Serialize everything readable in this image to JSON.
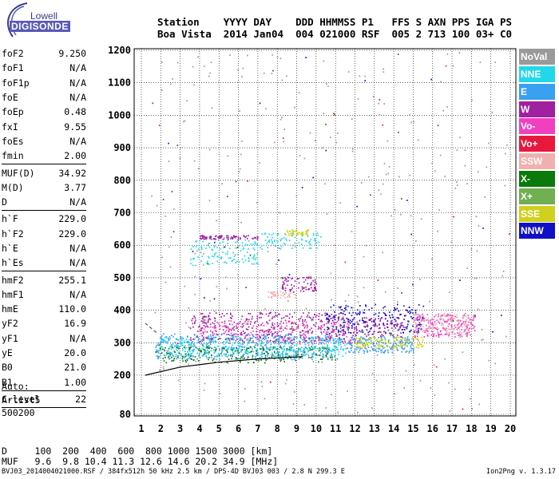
{
  "logo": {
    "brand": "Lowell",
    "product": "DIGISONDE"
  },
  "header": {
    "line1": "Station    YYYY DAY    DDD HHMMSS P1   FFS S AXN PPS IGA PS",
    "line2": "Boa Vista  2014 Jan04  004 021000 RSF  005 2 713 100 03+ C0"
  },
  "params": {
    "group1": [
      {
        "name": "foF2",
        "value": "9.250"
      },
      {
        "name": "foF1",
        "value": "N/A"
      },
      {
        "name": "foF1p",
        "value": "N/A"
      },
      {
        "name": "foE",
        "value": "N/A"
      },
      {
        "name": "foEp",
        "value": "0.48"
      },
      {
        "name": "fxI",
        "value": "9.55"
      },
      {
        "name": "foEs",
        "value": "N/A"
      },
      {
        "name": "fmin",
        "value": "2.00"
      }
    ],
    "group2": [
      {
        "name": "MUF(D)",
        "value": "34.92"
      },
      {
        "name": "M(D)",
        "value": "3.77"
      },
      {
        "name": "D",
        "value": "N/A"
      }
    ],
    "group3": [
      {
        "name": "h`F",
        "value": "229.0"
      },
      {
        "name": "h`F2",
        "value": "229.0"
      },
      {
        "name": "h`E",
        "value": "N/A"
      },
      {
        "name": "h`Es",
        "value": "N/A"
      }
    ],
    "group4": [
      {
        "name": "hmF2",
        "value": "255.1"
      },
      {
        "name": "hmF1",
        "value": "N/A"
      },
      {
        "name": "hmE",
        "value": "110.0"
      },
      {
        "name": "yF2",
        "value": "16.9"
      },
      {
        "name": "yF1",
        "value": "N/A"
      },
      {
        "name": "yE",
        "value": "20.0"
      },
      {
        "name": "B0",
        "value": "21.0"
      },
      {
        "name": "B1",
        "value": "1.00"
      }
    ],
    "group5": [
      {
        "name": "C-level",
        "value": "22"
      }
    ]
  },
  "auto": {
    "line1": "Auto:",
    "line2": "Artist5",
    "line3": "500200"
  },
  "legend": [
    {
      "label": "NoVal",
      "color": "#9a9a9a"
    },
    {
      "label": "NNE",
      "color": "#22d8e8"
    },
    {
      "label": "E",
      "color": "#3aa0f0"
    },
    {
      "label": "W",
      "color": "#a020a0"
    },
    {
      "label": "Vo-",
      "color": "#f040c0"
    },
    {
      "label": "Vo+",
      "color": "#e8183c"
    },
    {
      "label": "SSW",
      "color": "#f0b0b0"
    },
    {
      "label": "X-",
      "color": "#0a7a0a"
    },
    {
      "label": "X+",
      "color": "#70b050"
    },
    {
      "label": "SSE",
      "color": "#d0d020"
    },
    {
      "label": "NNW",
      "color": "#1010c8"
    }
  ],
  "dtable": {
    "row1": "D     100  200  400  600  800 1000 1500 3000 [km]",
    "row2": "MUF   9.6  9.8 10.4 11.3 12.6 14.6 20.2 34.9 [MHz]"
  },
  "footer": {
    "left": "BVJ03_2014004021000.RSF / 384fx512h 50 kHz 2.5 km / DPS-4D BVJ03 003 / 2.8 N 299.3 E",
    "right": "Ion2Png v. 1.3.17"
  },
  "chart_data": {
    "type": "scatter",
    "title": "",
    "xlabel": "",
    "ylabel": "",
    "xlim": [
      1,
      20
    ],
    "ylim": [
      80,
      1200
    ],
    "xticks": [
      1,
      2,
      3,
      4,
      5,
      6,
      7,
      8,
      9,
      10,
      11,
      12,
      13,
      14,
      15,
      16,
      17,
      18,
      19,
      20
    ],
    "yticks": [
      80,
      200,
      300,
      400,
      500,
      600,
      700,
      800,
      900,
      1000,
      1100,
      1200
    ],
    "grid": true,
    "legend_position": "right",
    "clusters": [
      {
        "series": "E",
        "color": "#3aa0f0",
        "x": [
          1.7,
          11.3
        ],
        "y": [
          250,
          330
        ],
        "n": 500
      },
      {
        "series": "NNE",
        "color": "#22d8e8",
        "x": [
          1.7,
          11.5
        ],
        "y": [
          260,
          320
        ],
        "n": 400
      },
      {
        "series": "W",
        "color": "#a020a0",
        "x": [
          3.5,
          11.5
        ],
        "y": [
          305,
          395
        ],
        "n": 380
      },
      {
        "series": "Vo-",
        "color": "#f040c0",
        "x": [
          4,
          12
        ],
        "y": [
          300,
          370
        ],
        "n": 200
      },
      {
        "series": "X-",
        "color": "#0a7a0a",
        "x": [
          1.7,
          11
        ],
        "y": [
          240,
          290
        ],
        "n": 180
      },
      {
        "series": "E",
        "color": "#3aa0f0",
        "x": [
          11.5,
          15
        ],
        "y": [
          270,
          320
        ],
        "n": 200
      },
      {
        "series": "SSE",
        "color": "#d0d020",
        "x": [
          12,
          15.5
        ],
        "y": [
          285,
          320
        ],
        "n": 120
      },
      {
        "series": "NNW",
        "color": "#1010c8",
        "x": [
          10.5,
          15.5
        ],
        "y": [
          330,
          420
        ],
        "n": 220
      },
      {
        "series": "W",
        "color": "#a020a0",
        "x": [
          11.8,
          14.5
        ],
        "y": [
          320,
          380
        ],
        "n": 100
      },
      {
        "series": "Vo-",
        "color": "#f040c0",
        "x": [
          15,
          18.2
        ],
        "y": [
          320,
          390
        ],
        "n": 200
      },
      {
        "series": "SSW",
        "color": "#f0b0b0",
        "x": [
          15,
          18
        ],
        "y": [
          330,
          390
        ],
        "n": 120
      },
      {
        "series": "NNE",
        "color": "#22d8e8",
        "x": [
          3.5,
          7
        ],
        "y": [
          540,
          620
        ],
        "n": 120
      },
      {
        "series": "W",
        "color": "#a020a0",
        "x": [
          4,
          7
        ],
        "y": [
          620,
          632
        ],
        "n": 80
      },
      {
        "series": "NNE",
        "color": "#22d8e8",
        "x": [
          6.8,
          10.3
        ],
        "y": [
          590,
          640
        ],
        "n": 80
      },
      {
        "series": "SSE",
        "color": "#d0d020",
        "x": [
          8.3,
          9.6
        ],
        "y": [
          630,
          650
        ],
        "n": 40
      },
      {
        "series": "W",
        "color": "#a020a0",
        "x": [
          8.2,
          10
        ],
        "y": [
          460,
          505
        ],
        "n": 80
      },
      {
        "series": "SSW",
        "color": "#f0b0b0",
        "x": [
          7.5,
          9
        ],
        "y": [
          440,
          460
        ],
        "n": 40
      },
      {
        "series": "NoVal",
        "color": "#9a9a9a",
        "x": [
          1.5,
          20
        ],
        "y": [
          80,
          1200
        ],
        "n": 300
      },
      {
        "series": "X-",
        "color": "#0a7a0a",
        "x": [
          1.5,
          20
        ],
        "y": [
          300,
          1200
        ],
        "n": 25
      },
      {
        "series": "NNW",
        "color": "#1010c8",
        "x": [
          1.5,
          20
        ],
        "y": [
          300,
          1200
        ],
        "n": 25
      },
      {
        "series": "Vo+",
        "color": "#e8183c",
        "x": [
          1.5,
          20
        ],
        "y": [
          80,
          1200
        ],
        "n": 20
      }
    ],
    "traces": [
      {
        "name": "ordinary trace fit",
        "color": "#000000",
        "style": "solid",
        "x": [
          1.2,
          3,
          5,
          7,
          9.3
        ],
        "y": [
          200,
          225,
          240,
          250,
          257
        ]
      },
      {
        "name": "extraordinary trace fit",
        "color": "#555555",
        "style": "dashed",
        "x": [
          1.2,
          1.8
        ],
        "y": [
          360,
          330
        ]
      }
    ]
  }
}
